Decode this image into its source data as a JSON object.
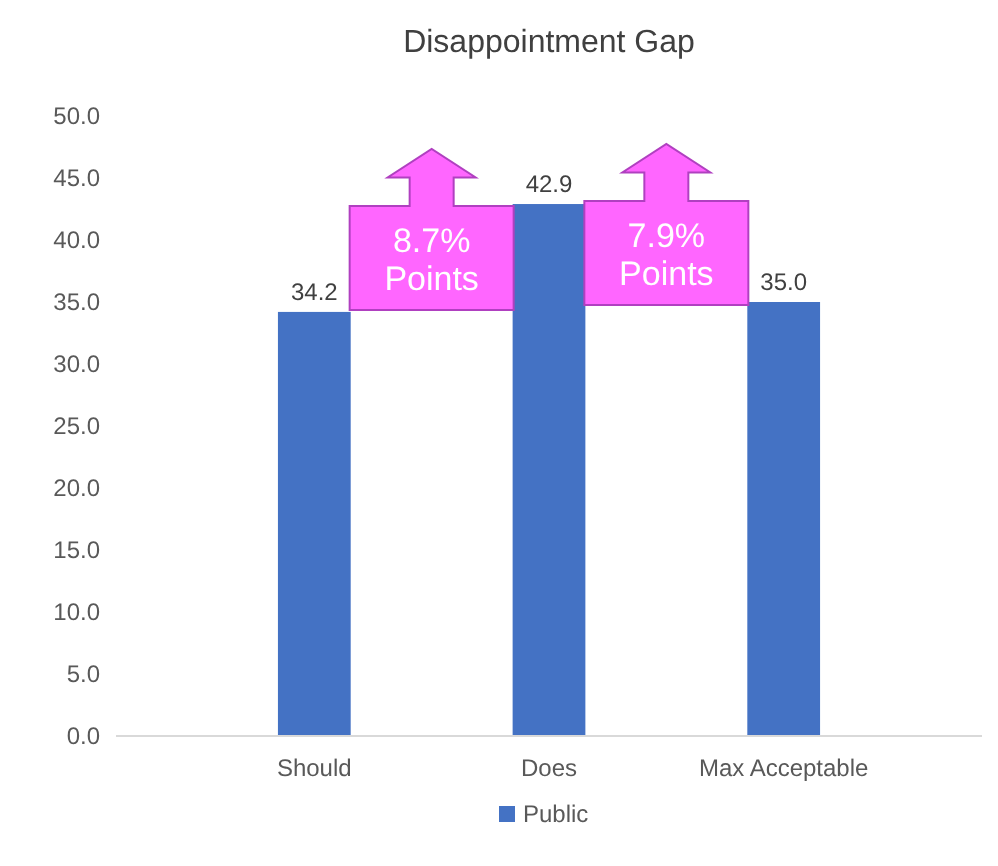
{
  "chart_data": {
    "type": "bar",
    "title": "Disappointment Gap",
    "categories": [
      "Should",
      "Does",
      "Max Acceptable"
    ],
    "series": [
      {
        "name": "Public",
        "color": "#4472c4",
        "values": [
          34.2,
          42.9,
          35.0
        ]
      }
    ],
    "value_labels": [
      "34.2",
      "42.9",
      "35.0"
    ],
    "ylim": [
      0,
      50
    ],
    "yticks": [
      {
        "value": 0,
        "label": "0.0"
      },
      {
        "value": 5,
        "label": "5.0"
      },
      {
        "value": 10,
        "label": "10.0"
      },
      {
        "value": 15,
        "label": "15.0"
      },
      {
        "value": 20,
        "label": "20.0"
      },
      {
        "value": 25,
        "label": "25.0"
      },
      {
        "value": 30,
        "label": "30.0"
      },
      {
        "value": 35,
        "label": "35.0"
      },
      {
        "value": 40,
        "label": "40.0"
      },
      {
        "value": 45,
        "label": "45.0"
      },
      {
        "value": 50,
        "label": "50.0"
      }
    ],
    "annotations": [
      "8.7%\nPoints",
      "7.9%\nPoints"
    ],
    "legend": "bottom"
  }
}
